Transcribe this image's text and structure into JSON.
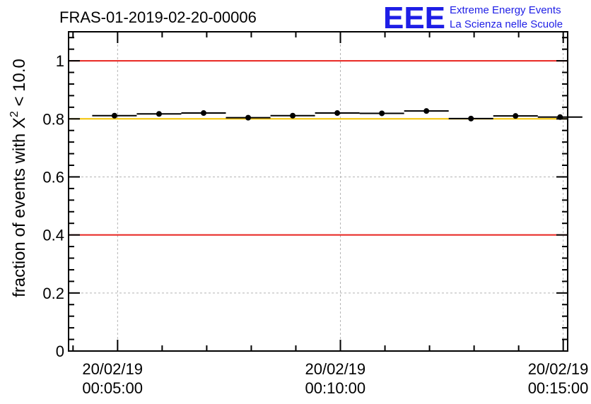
{
  "chart_data": {
    "type": "scatter",
    "title": "FRAS-01-2019-02-20-00006",
    "xlabel": "",
    "ylabel_prefix": "fraction of events with ",
    "ylabel_chi": "X",
    "ylabel_sup": "2",
    "ylabel_suffix": " < 10.0",
    "ylim": [
      0,
      1.1
    ],
    "yticks": [
      "0",
      "0.2",
      "0.4",
      "0.6",
      "0.8",
      "1"
    ],
    "ytick_values": [
      0,
      0.2,
      0.4,
      0.6,
      0.8,
      1.0
    ],
    "xlim_minutes": [
      3.9,
      15.1
    ],
    "xticks": [
      {
        "minutes": 5,
        "date": "20/02/19",
        "time": "00:05:00"
      },
      {
        "minutes": 10,
        "date": "20/02/19",
        "time": "00:10:00"
      },
      {
        "minutes": 15,
        "date": "20/02/19",
        "time": "00:15:00"
      }
    ],
    "points": [
      {
        "x": 4.93,
        "xerr": 0.5,
        "y": 0.811
      },
      {
        "x": 5.93,
        "xerr": 0.5,
        "y": 0.817
      },
      {
        "x": 6.93,
        "xerr": 0.5,
        "y": 0.82
      },
      {
        "x": 7.93,
        "xerr": 0.5,
        "y": 0.804
      },
      {
        "x": 8.93,
        "xerr": 0.5,
        "y": 0.811
      },
      {
        "x": 9.93,
        "xerr": 0.5,
        "y": 0.82
      },
      {
        "x": 10.93,
        "xerr": 0.5,
        "y": 0.819
      },
      {
        "x": 11.93,
        "xerr": 0.5,
        "y": 0.827
      },
      {
        "x": 12.93,
        "xerr": 0.5,
        "y": 0.801
      },
      {
        "x": 13.93,
        "xerr": 0.5,
        "y": 0.81
      },
      {
        "x": 14.93,
        "xerr": 0.5,
        "y": 0.806
      }
    ],
    "reference_lines": [
      {
        "y": 1.0,
        "color": "#e8231e",
        "name": "upper-limit"
      },
      {
        "y": 0.4,
        "color": "#e8231e",
        "name": "lower-limit"
      },
      {
        "y": 0.8,
        "color": "#f2c200",
        "name": "threshold"
      }
    ],
    "grid": true
  },
  "logo": {
    "mark": "EEE",
    "line1": "Extreme Energy Events",
    "line2": "La Scienza nelle Scuole",
    "color": "#1e1ee6"
  }
}
